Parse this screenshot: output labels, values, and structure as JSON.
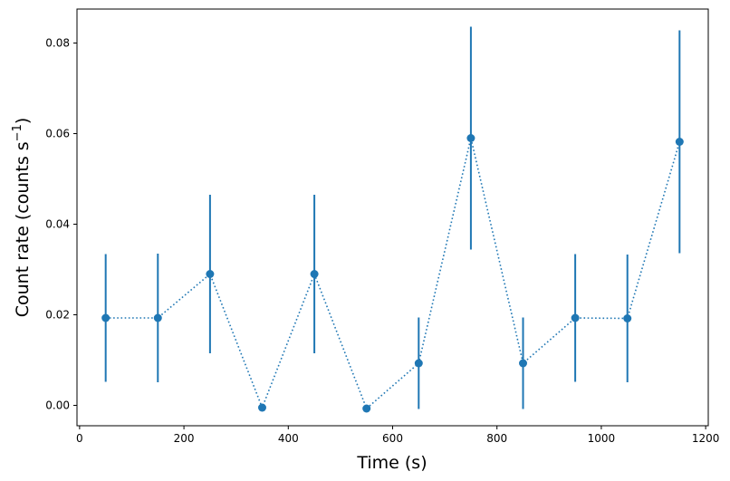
{
  "chart_data": {
    "type": "scatter",
    "xlabel": "Time (s)",
    "ylabel": "Count rate (counts s",
    "ylabel_unit_exponent": "−1",
    "ylabel_close": ")",
    "xlim": [
      -5,
      1205
    ],
    "ylim": [
      -0.0045,
      0.0875
    ],
    "xticks": [
      0,
      200,
      400,
      600,
      800,
      1000,
      1200
    ],
    "xtick_labels": [
      "0",
      "200",
      "400",
      "600",
      "800",
      "1000",
      "1200"
    ],
    "yticks": [
      0.0,
      0.02,
      0.04,
      0.06,
      0.08
    ],
    "ytick_labels": [
      "0.00",
      "0.02",
      "0.04",
      "0.06",
      "0.08"
    ],
    "grid": false,
    "line_style": "dotted",
    "color": "#1f77b4",
    "series": [
      {
        "x": [
          50,
          150,
          250,
          350,
          450,
          550,
          650,
          750,
          850,
          950,
          1050,
          1150
        ],
        "y": [
          0.0193,
          0.0193,
          0.029,
          -0.0005,
          0.029,
          -0.0007,
          0.0093,
          0.059,
          0.0093,
          0.0193,
          0.0192,
          0.0582
        ],
        "yerr": [
          0.0141,
          0.0142,
          0.0175,
          0,
          0.0175,
          0,
          0.0101,
          0.0246,
          0.0101,
          0.0141,
          0.0141,
          0.0246
        ]
      }
    ]
  }
}
